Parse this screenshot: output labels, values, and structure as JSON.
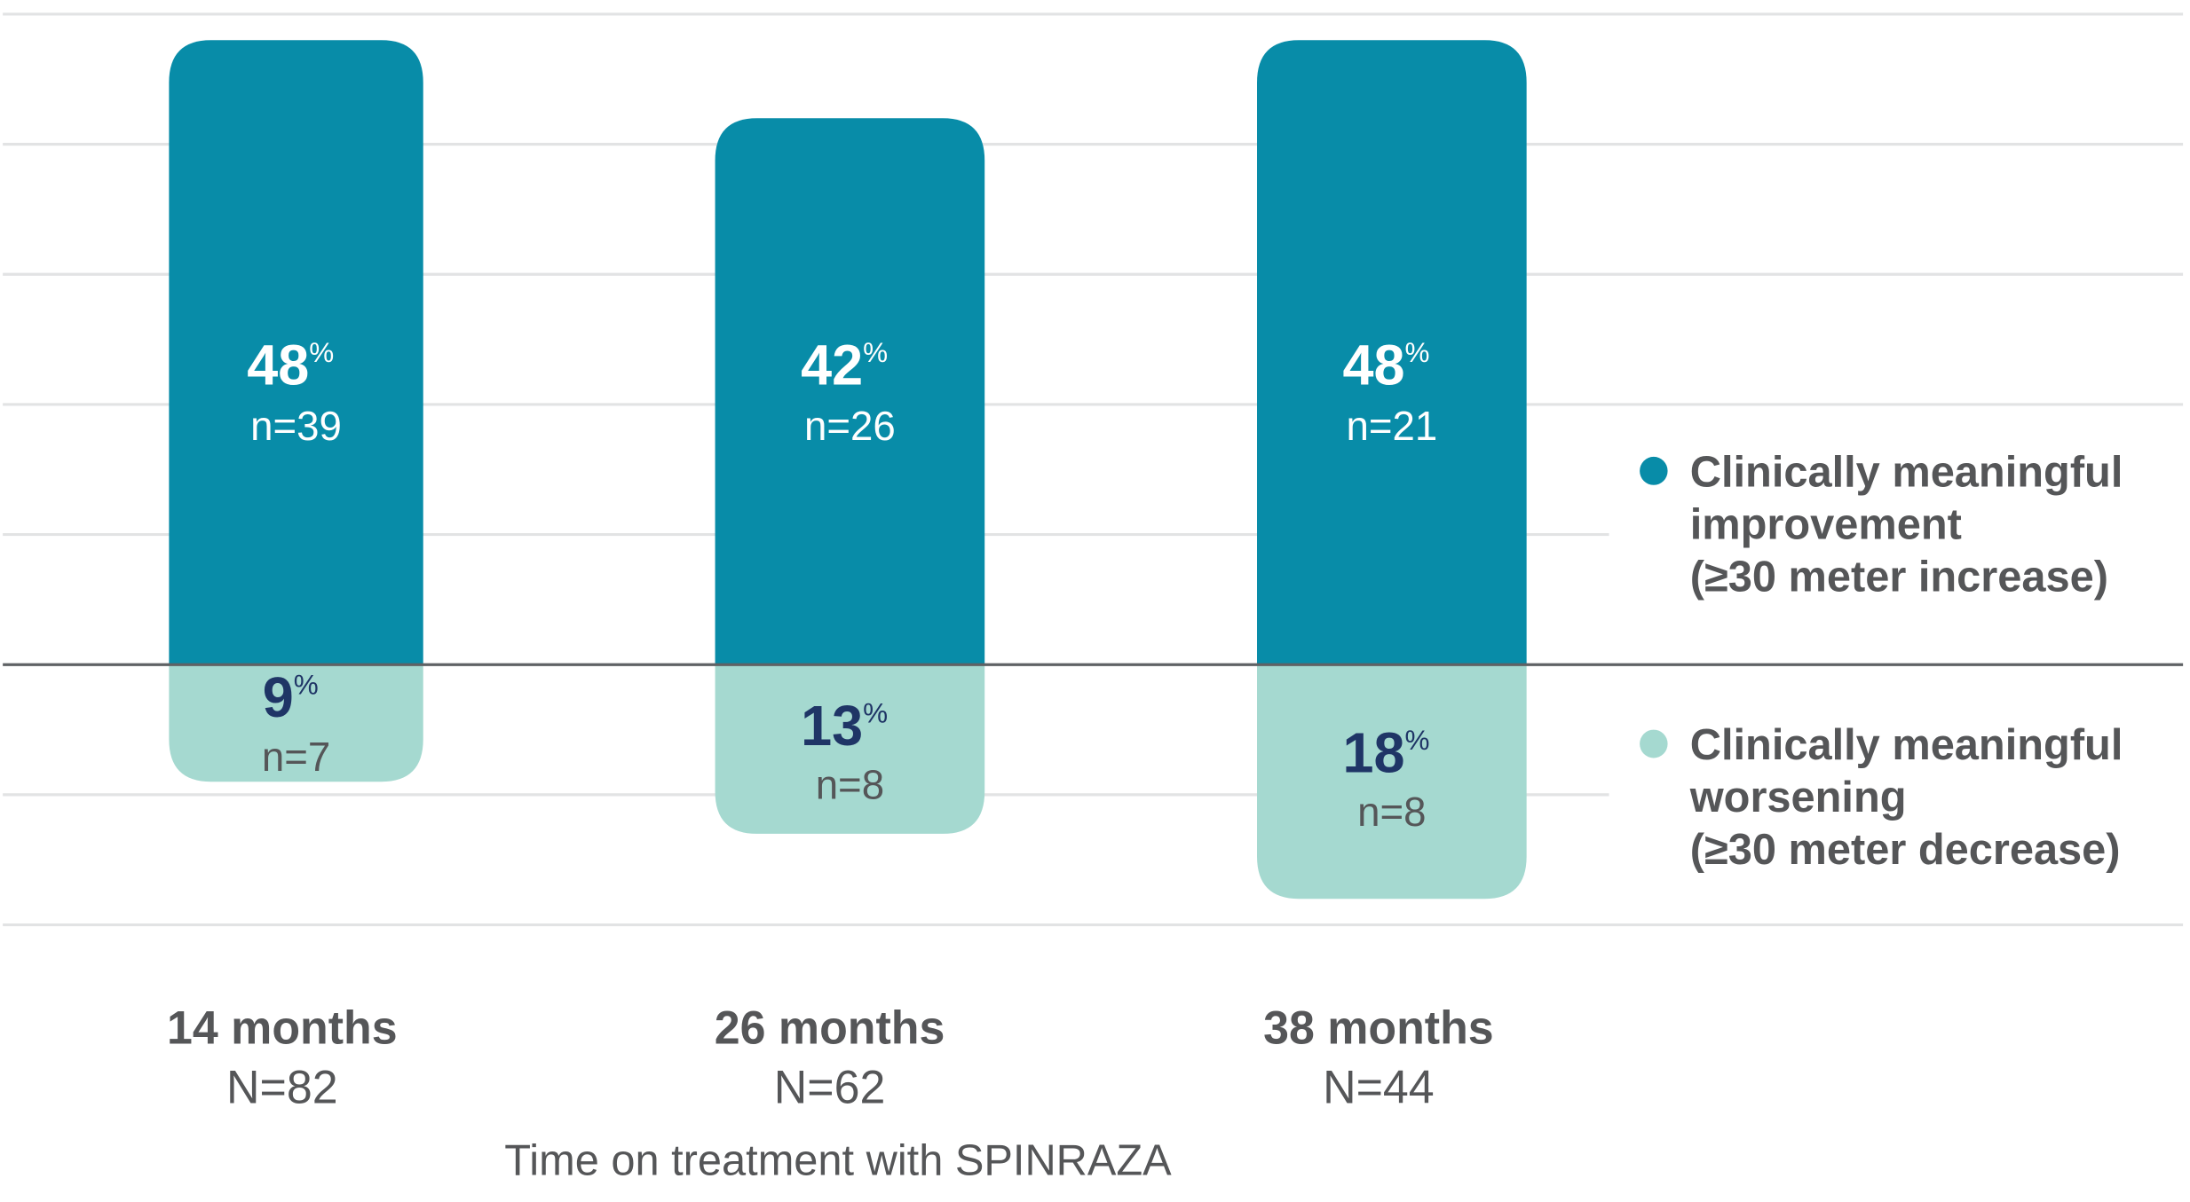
{
  "chart_data": {
    "type": "bar",
    "stacked": "diverging",
    "categories": [
      "14 months",
      "26 months",
      "38 months"
    ],
    "category_n": [
      "N=82",
      "N=62",
      "N=44"
    ],
    "xlabel": "Time on treatment with SPINRAZA",
    "ylabel": "",
    "ylim": [
      -20,
      50
    ],
    "grid": true,
    "legend_position": "right",
    "series": [
      {
        "name": "Clinically meaningful improvement (≥30 meter increase)",
        "legend_lines": [
          "Clinically meaningful",
          "improvement",
          "(≥30 meter increase)"
        ],
        "values": [
          48,
          42,
          48
        ],
        "labels": [
          "48",
          "42",
          "48"
        ],
        "n_labels": [
          "n=39",
          "n=26",
          "n=21"
        ],
        "color": "#088ca8",
        "label_color": "#ffffff"
      },
      {
        "name": "Clinically meaningful worsening (≥30 meter decrease)",
        "legend_lines": [
          "Clinically meaningful",
          "worsening",
          "(≥30 meter decrease)"
        ],
        "values": [
          -9,
          -13,
          -18
        ],
        "labels": [
          "9",
          "13",
          "18"
        ],
        "n_labels": [
          "n=7",
          "n=8",
          "n=8"
        ],
        "color": "#a5d9d0",
        "label_color": "#1f3566"
      }
    ],
    "percent_symbol": "%"
  }
}
